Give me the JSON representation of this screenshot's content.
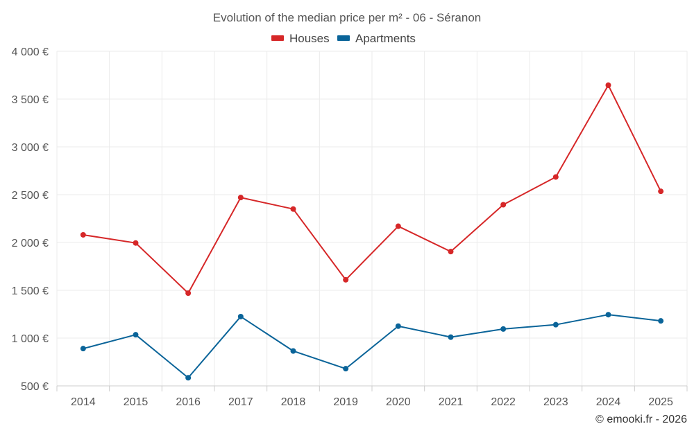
{
  "chart_data": {
    "type": "line",
    "title": "Evolution of the median price per m² - 06 - Séranon",
    "categories": [
      "2014",
      "2015",
      "2016",
      "2017",
      "2018",
      "2019",
      "2020",
      "2021",
      "2022",
      "2023",
      "2024",
      "2025"
    ],
    "series": [
      {
        "name": "Houses",
        "color": "#d62728",
        "values": [
          2080,
          1995,
          1470,
          2470,
          2350,
          1610,
          2170,
          1905,
          2395,
          2685,
          3645,
          2535
        ]
      },
      {
        "name": "Apartments",
        "color": "#0a6499",
        "values": [
          890,
          1035,
          585,
          1225,
          865,
          680,
          1125,
          1010,
          1095,
          1140,
          1245,
          1180
        ]
      }
    ],
    "ylim": [
      500,
      4000
    ],
    "yticks": [
      500,
      1000,
      1500,
      2000,
      2500,
      3000,
      3500,
      4000
    ],
    "ytick_labels": [
      "500 €",
      "1 000 €",
      "1 500 €",
      "2 000 €",
      "2 500 €",
      "3 000 €",
      "3 500 €",
      "4 000 €"
    ],
    "xlabel": "",
    "ylabel": "",
    "grid": true,
    "legend_position": "top-center",
    "credit": "© emooki.fr - 2026"
  }
}
